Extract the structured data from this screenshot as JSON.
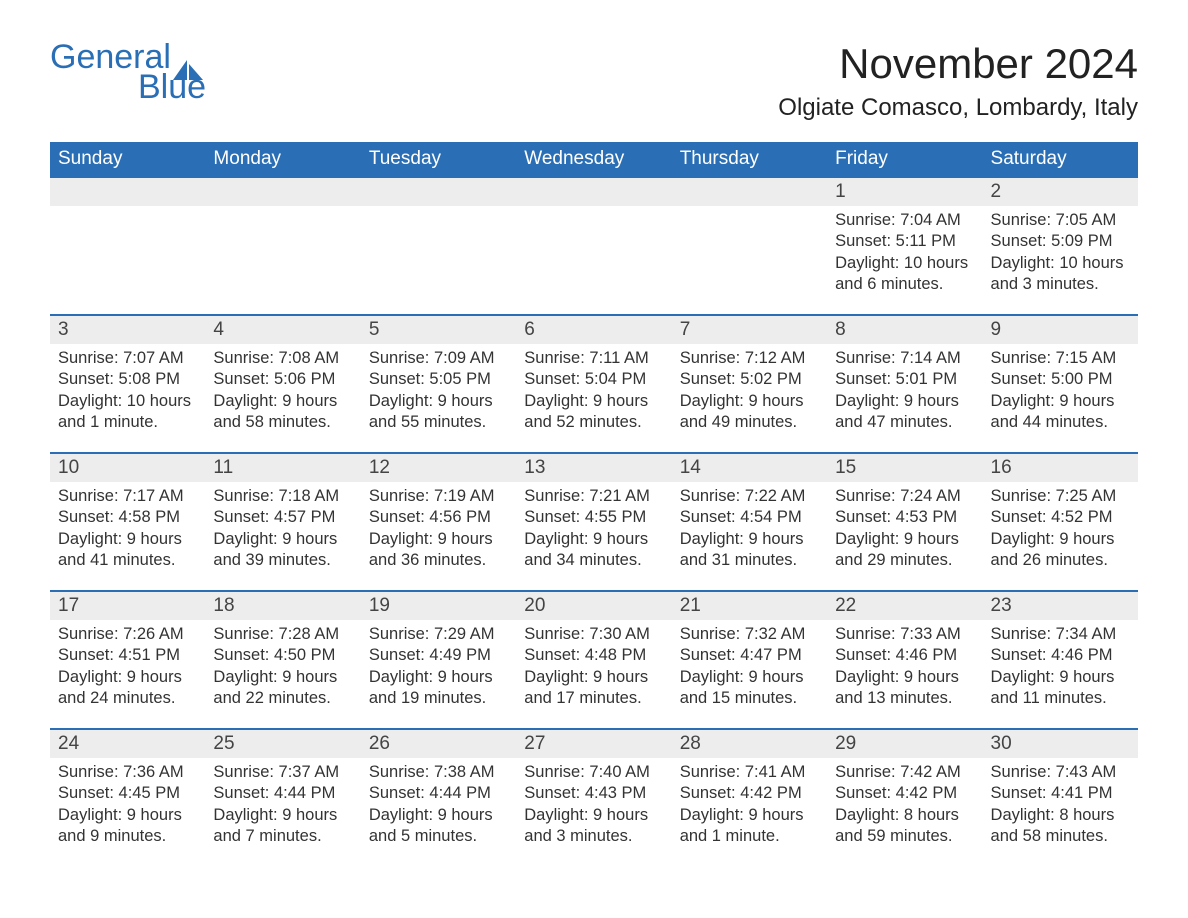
{
  "brand": {
    "top": "General",
    "bottom": "Blue",
    "accent": "#2a6fb5"
  },
  "title": "November 2024",
  "location": "Olgiate Comasco, Lombardy, Italy",
  "colors": {
    "header_bg": "#2a6fb5",
    "header_text": "#ffffff",
    "daynum_bg": "#ededed",
    "row_border": "#2a6fb5",
    "body_text": "#333333",
    "page_bg": "#ffffff"
  },
  "typography": {
    "title_fontsize": 42,
    "location_fontsize": 24,
    "header_fontsize": 19,
    "daynum_fontsize": 19,
    "body_fontsize": 16.5,
    "font_family": "Arial"
  },
  "layout": {
    "columns": 7,
    "rows": 5,
    "first_day_column_index": 5
  },
  "weekdays": [
    "Sunday",
    "Monday",
    "Tuesday",
    "Wednesday",
    "Thursday",
    "Friday",
    "Saturday"
  ],
  "days": [
    {
      "n": 1,
      "sunrise": "7:04 AM",
      "sunset": "5:11 PM",
      "daylight": "10 hours and 6 minutes."
    },
    {
      "n": 2,
      "sunrise": "7:05 AM",
      "sunset": "5:09 PM",
      "daylight": "10 hours and 3 minutes."
    },
    {
      "n": 3,
      "sunrise": "7:07 AM",
      "sunset": "5:08 PM",
      "daylight": "10 hours and 1 minute."
    },
    {
      "n": 4,
      "sunrise": "7:08 AM",
      "sunset": "5:06 PM",
      "daylight": "9 hours and 58 minutes."
    },
    {
      "n": 5,
      "sunrise": "7:09 AM",
      "sunset": "5:05 PM",
      "daylight": "9 hours and 55 minutes."
    },
    {
      "n": 6,
      "sunrise": "7:11 AM",
      "sunset": "5:04 PM",
      "daylight": "9 hours and 52 minutes."
    },
    {
      "n": 7,
      "sunrise": "7:12 AM",
      "sunset": "5:02 PM",
      "daylight": "9 hours and 49 minutes."
    },
    {
      "n": 8,
      "sunrise": "7:14 AM",
      "sunset": "5:01 PM",
      "daylight": "9 hours and 47 minutes."
    },
    {
      "n": 9,
      "sunrise": "7:15 AM",
      "sunset": "5:00 PM",
      "daylight": "9 hours and 44 minutes."
    },
    {
      "n": 10,
      "sunrise": "7:17 AM",
      "sunset": "4:58 PM",
      "daylight": "9 hours and 41 minutes."
    },
    {
      "n": 11,
      "sunrise": "7:18 AM",
      "sunset": "4:57 PM",
      "daylight": "9 hours and 39 minutes."
    },
    {
      "n": 12,
      "sunrise": "7:19 AM",
      "sunset": "4:56 PM",
      "daylight": "9 hours and 36 minutes."
    },
    {
      "n": 13,
      "sunrise": "7:21 AM",
      "sunset": "4:55 PM",
      "daylight": "9 hours and 34 minutes."
    },
    {
      "n": 14,
      "sunrise": "7:22 AM",
      "sunset": "4:54 PM",
      "daylight": "9 hours and 31 minutes."
    },
    {
      "n": 15,
      "sunrise": "7:24 AM",
      "sunset": "4:53 PM",
      "daylight": "9 hours and 29 minutes."
    },
    {
      "n": 16,
      "sunrise": "7:25 AM",
      "sunset": "4:52 PM",
      "daylight": "9 hours and 26 minutes."
    },
    {
      "n": 17,
      "sunrise": "7:26 AM",
      "sunset": "4:51 PM",
      "daylight": "9 hours and 24 minutes."
    },
    {
      "n": 18,
      "sunrise": "7:28 AM",
      "sunset": "4:50 PM",
      "daylight": "9 hours and 22 minutes."
    },
    {
      "n": 19,
      "sunrise": "7:29 AM",
      "sunset": "4:49 PM",
      "daylight": "9 hours and 19 minutes."
    },
    {
      "n": 20,
      "sunrise": "7:30 AM",
      "sunset": "4:48 PM",
      "daylight": "9 hours and 17 minutes."
    },
    {
      "n": 21,
      "sunrise": "7:32 AM",
      "sunset": "4:47 PM",
      "daylight": "9 hours and 15 minutes."
    },
    {
      "n": 22,
      "sunrise": "7:33 AM",
      "sunset": "4:46 PM",
      "daylight": "9 hours and 13 minutes."
    },
    {
      "n": 23,
      "sunrise": "7:34 AM",
      "sunset": "4:46 PM",
      "daylight": "9 hours and 11 minutes."
    },
    {
      "n": 24,
      "sunrise": "7:36 AM",
      "sunset": "4:45 PM",
      "daylight": "9 hours and 9 minutes."
    },
    {
      "n": 25,
      "sunrise": "7:37 AM",
      "sunset": "4:44 PM",
      "daylight": "9 hours and 7 minutes."
    },
    {
      "n": 26,
      "sunrise": "7:38 AM",
      "sunset": "4:44 PM",
      "daylight": "9 hours and 5 minutes."
    },
    {
      "n": 27,
      "sunrise": "7:40 AM",
      "sunset": "4:43 PM",
      "daylight": "9 hours and 3 minutes."
    },
    {
      "n": 28,
      "sunrise": "7:41 AM",
      "sunset": "4:42 PM",
      "daylight": "9 hours and 1 minute."
    },
    {
      "n": 29,
      "sunrise": "7:42 AM",
      "sunset": "4:42 PM",
      "daylight": "8 hours and 59 minutes."
    },
    {
      "n": 30,
      "sunrise": "7:43 AM",
      "sunset": "4:41 PM",
      "daylight": "8 hours and 58 minutes."
    }
  ],
  "labels": {
    "sunrise": "Sunrise: ",
    "sunset": "Sunset: ",
    "daylight": "Daylight: "
  }
}
